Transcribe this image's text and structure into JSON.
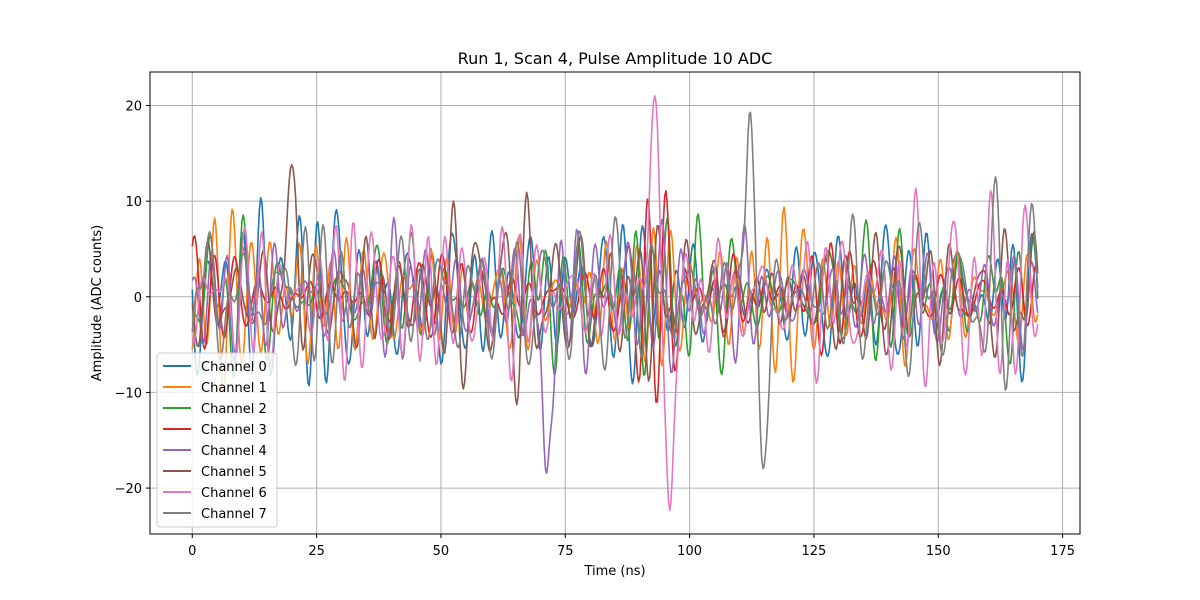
{
  "chart_data": {
    "type": "line",
    "title": "Run 1, Scan 4, Pulse Amplitude 10 ADC",
    "xlabel": "Time (ns)",
    "ylabel": "Amplitude (ADC counts)",
    "xlim": [
      -8.5,
      178.5
    ],
    "ylim": [
      -24.8,
      23.5
    ],
    "xticks": [
      0,
      25,
      50,
      75,
      100,
      125,
      150,
      175
    ],
    "yticks": [
      -20,
      -10,
      0,
      10,
      20
    ],
    "grid": true,
    "legend_position": "lower-left",
    "x_range": [
      0,
      170
    ],
    "n_points": 681,
    "series": [
      {
        "name": "Channel 0",
        "color": "#1f77b4",
        "phase": 0.3
      },
      {
        "name": "Channel 1",
        "color": "#ff7f0e",
        "phase": 1.1
      },
      {
        "name": "Channel 2",
        "color": "#2ca02c",
        "phase": 2.0
      },
      {
        "name": "Channel 3",
        "color": "#d62728",
        "phase": 2.7
      },
      {
        "name": "Channel 4",
        "color": "#9467bd",
        "phase": 3.5
      },
      {
        "name": "Channel 5",
        "color": "#8c564b",
        "phase": 4.4
      },
      {
        "name": "Channel 6",
        "color": "#e377c2",
        "phase": 5.2
      },
      {
        "name": "Channel 7",
        "color": "#7f7f7f",
        "phase": 6.0
      }
    ],
    "peaks": [
      {
        "series": "Channel 4",
        "x": 71.2,
        "y": -18.5
      },
      {
        "series": "Channel 6",
        "x": 96.0,
        "y": -22.5
      },
      {
        "series": "Channel 6",
        "x": 93.0,
        "y": 21.0
      },
      {
        "series": "Channel 7",
        "x": 112.2,
        "y": 20.0
      },
      {
        "series": "Channel 7",
        "x": 114.8,
        "y": -18.0
      },
      {
        "series": "Channel 5",
        "x": 20.0,
        "y": 13.8
      }
    ]
  }
}
